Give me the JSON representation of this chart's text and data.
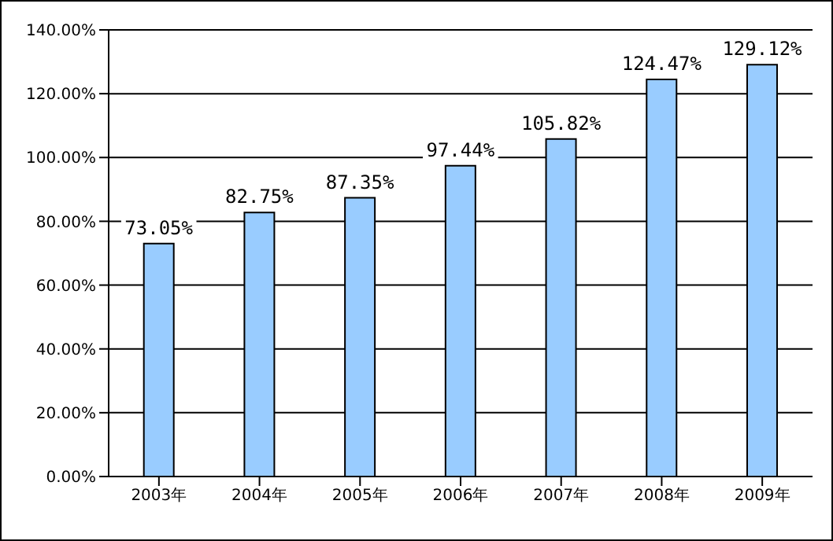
{
  "chart_data": {
    "type": "bar",
    "categories": [
      "2003年",
      "2004年",
      "2005年",
      "2006年",
      "2007年",
      "2008年",
      "2009年"
    ],
    "values": [
      73.05,
      82.75,
      87.35,
      97.44,
      105.82,
      124.47,
      129.12
    ],
    "value_labels": [
      "73.05%",
      "82.75%",
      "87.35%",
      "97.44%",
      "105.82%",
      "124.47%",
      "129.12%"
    ],
    "color": "#99ccff",
    "ylim": [
      0,
      140
    ],
    "yticks": [
      {
        "value": 0,
        "label": "0.00%"
      },
      {
        "value": 20,
        "label": "20.00%"
      },
      {
        "value": 40,
        "label": "40.00%"
      },
      {
        "value": 60,
        "label": "60.00%"
      },
      {
        "value": 80,
        "label": "80.00%"
      },
      {
        "value": 100,
        "label": "100.00%"
      },
      {
        "value": 120,
        "label": "120.00%"
      },
      {
        "value": 140,
        "label": "140.00%"
      }
    ],
    "grid": "y",
    "legend": false
  }
}
